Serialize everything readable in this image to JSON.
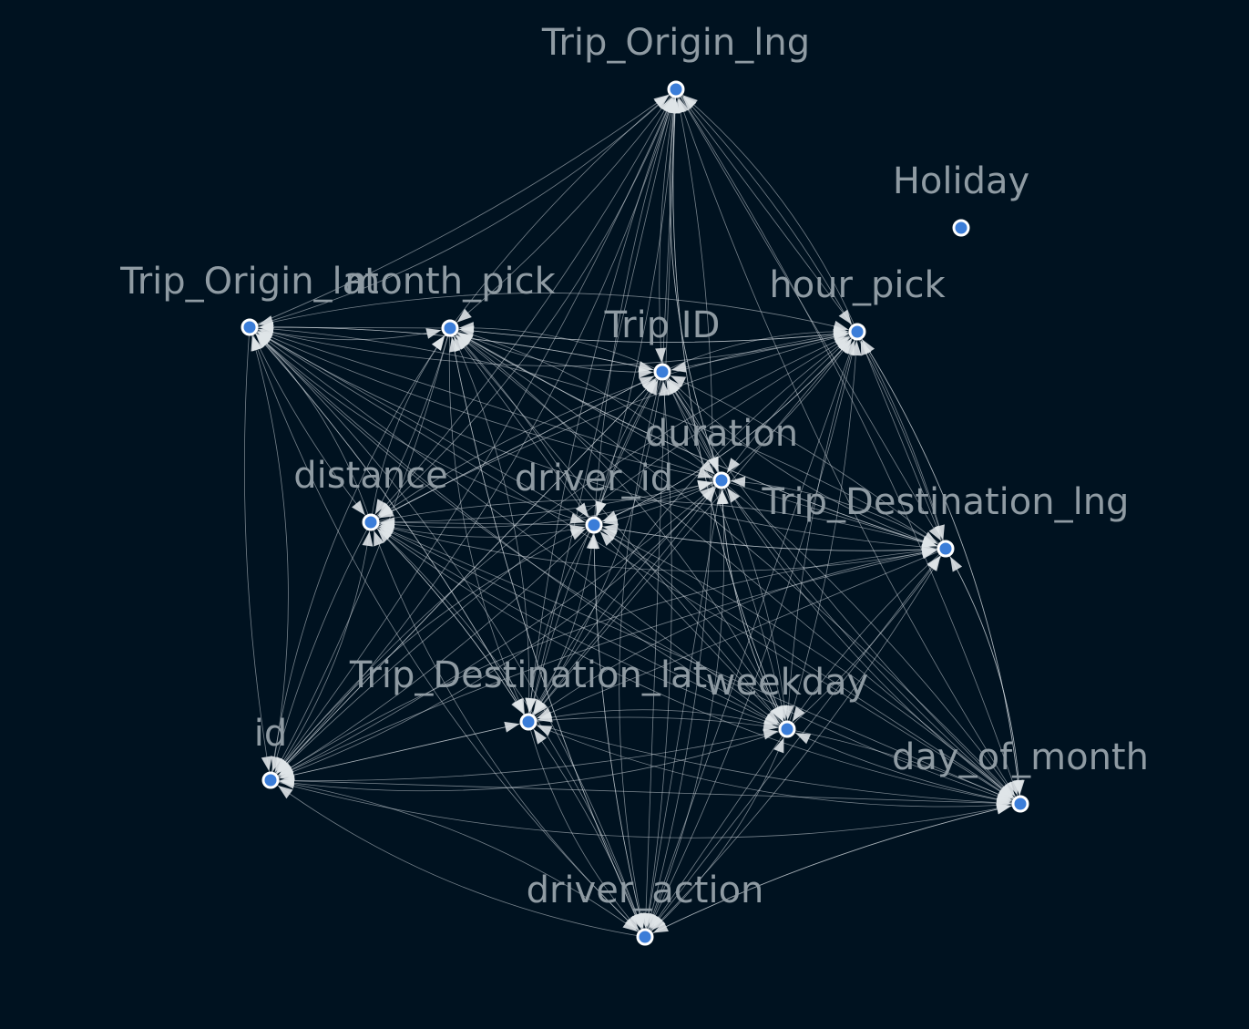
{
  "graph": {
    "nodes": [
      {
        "id": "Trip_Origin_lng",
        "label": "Trip_Origin_lng"
      },
      {
        "id": "Holiday",
        "label": "Holiday"
      },
      {
        "id": "Trip_Origin_lat",
        "label": "Trip_Origin_lat"
      },
      {
        "id": "month_pick",
        "label": "month_pick"
      },
      {
        "id": "hour_pick",
        "label": "hour_pick"
      },
      {
        "id": "Trip ID",
        "label": "Trip ID"
      },
      {
        "id": "duration",
        "label": "duration"
      },
      {
        "id": "distance",
        "label": "distance"
      },
      {
        "id": "driver_id",
        "label": "driver_id"
      },
      {
        "id": "Trip_Destination_lng",
        "label": "Trip_Destination_lng"
      },
      {
        "id": "Trip_Destination_lat",
        "label": "Trip_Destination_lat"
      },
      {
        "id": "weekday",
        "label": "weekday"
      },
      {
        "id": "id",
        "label": "id"
      },
      {
        "id": "day_of_month",
        "label": "day_of_month"
      },
      {
        "id": "driver_action",
        "label": "driver_action"
      }
    ],
    "colors": {
      "background": "#001220",
      "node": "#3b7dd8",
      "edge": "#d6dde2",
      "label": "#8f9ba3"
    }
  }
}
